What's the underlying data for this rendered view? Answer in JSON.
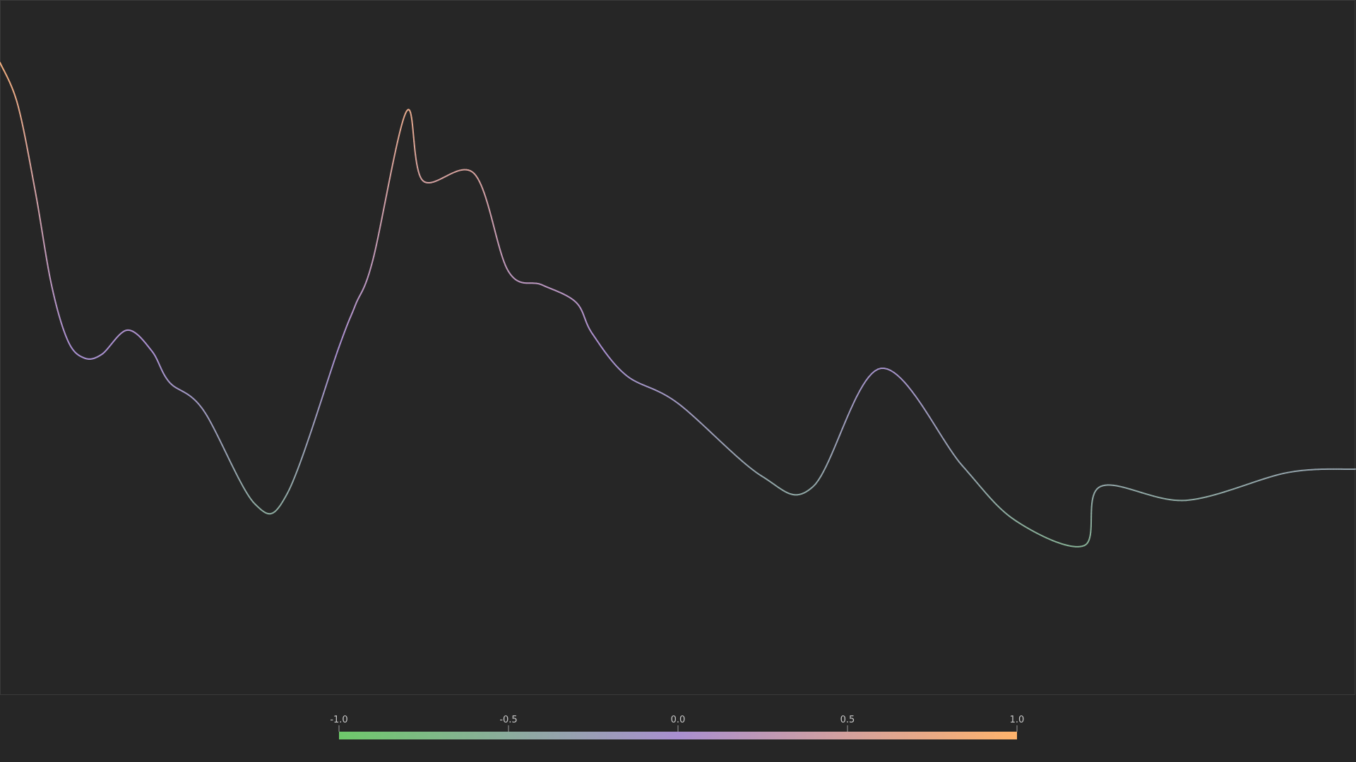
{
  "chart_data": {
    "type": "line",
    "title": "",
    "xlabel": "",
    "ylabel": "",
    "grid": false,
    "legend": "none",
    "xlim": [
      0,
      1
    ],
    "ylim": [
      -1,
      1
    ],
    "colorbar": {
      "placement": "bottom-center",
      "range": [
        -1.0,
        1.0
      ],
      "ticks": [
        -1.0,
        -0.5,
        0.0,
        0.5,
        1.0
      ],
      "tick_labels": [
        "-1.0",
        "-0.5",
        "0.0",
        "0.5",
        "1.0"
      ],
      "colors": {
        "low": "#6ec96a",
        "mid": "#a98fd0",
        "high": "#ffb36b"
      }
    },
    "series": [
      {
        "x": [
          0.0,
          0.013,
          0.026,
          0.038,
          0.05,
          0.062,
          0.075,
          0.094,
          0.112,
          0.125,
          0.15,
          0.188,
          0.212,
          0.25,
          0.262,
          0.275,
          0.3,
          0.312,
          0.35,
          0.375,
          0.4,
          0.425,
          0.437,
          0.462,
          0.5,
          0.562,
          0.6,
          0.65,
          0.71,
          0.75,
          0.8,
          0.812,
          0.875,
          0.95,
          1.0
        ],
        "y": [
          0.82,
          0.7,
          0.45,
          0.18,
          0.02,
          -0.03,
          -0.02,
          0.05,
          -0.01,
          -0.1,
          -0.18,
          -0.45,
          -0.42,
          0.0,
          0.12,
          0.25,
          0.68,
          0.48,
          0.5,
          0.22,
          0.18,
          0.13,
          0.04,
          -0.08,
          -0.16,
          -0.37,
          -0.4,
          -0.06,
          -0.34,
          -0.5,
          -0.57,
          -0.4,
          -0.44,
          -0.36,
          -0.35
        ]
      }
    ]
  }
}
